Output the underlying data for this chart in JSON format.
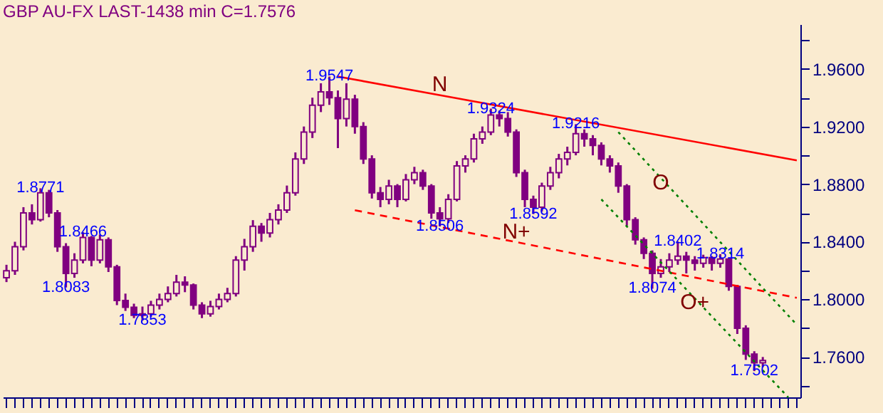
{
  "chart_data": {
    "type": "candlestick",
    "title": "GBP AU-FX LAST-1438 min C=1.7576",
    "color": "#800080",
    "categories": [
      null,
      null,
      null,
      null,
      null,
      null,
      null,
      null,
      null,
      null,
      null,
      null,
      null,
      null,
      null,
      null,
      null,
      null,
      null,
      null,
      null,
      null,
      null,
      null,
      null,
      null,
      null,
      null,
      null,
      null,
      null,
      null,
      null,
      null,
      null,
      null,
      null,
      null,
      null,
      null,
      null,
      null,
      null,
      null,
      null,
      null,
      null,
      null,
      null,
      null,
      null,
      null,
      null,
      null,
      null,
      null,
      null,
      null,
      null,
      null,
      null,
      null,
      null,
      null,
      null,
      null,
      null,
      null,
      null,
      null,
      null,
      null,
      null,
      null,
      null,
      null,
      null,
      null,
      null,
      null,
      null,
      null,
      null,
      null,
      null,
      null,
      null,
      null,
      null,
      null,
      null,
      null,
      null,
      null
    ],
    "ohlc": [
      [
        1.815,
        1.824,
        1.812,
        1.8198
      ],
      [
        1.8198,
        1.84,
        1.817,
        1.8366
      ],
      [
        1.8366,
        1.864,
        1.834,
        1.86
      ],
      [
        1.86,
        1.866,
        1.852,
        1.8553
      ],
      [
        1.8553,
        1.8771,
        1.854,
        1.874
      ],
      [
        1.874,
        1.876,
        1.857,
        1.86
      ],
      [
        1.86,
        1.862,
        1.833,
        1.8366
      ],
      [
        1.8366,
        1.839,
        1.8083,
        1.818
      ],
      [
        1.818,
        1.832,
        1.815,
        1.8273
      ],
      [
        1.8273,
        1.8466,
        1.825,
        1.843
      ],
      [
        1.843,
        1.844,
        1.823,
        1.8273
      ],
      [
        1.8273,
        1.845,
        1.825,
        1.8413
      ],
      [
        1.8413,
        1.843,
        1.819,
        1.8226
      ],
      [
        1.8226,
        1.824,
        1.796,
        1.7992
      ],
      [
        1.7992,
        1.804,
        1.792,
        1.7945
      ],
      [
        1.7945,
        1.797,
        1.787,
        1.789
      ],
      [
        1.789,
        1.795,
        1.7853,
        1.79
      ],
      [
        1.79,
        1.799,
        1.788,
        1.796
      ],
      [
        1.796,
        1.804,
        1.793,
        1.8
      ],
      [
        1.8,
        1.809,
        1.798,
        1.804
      ],
      [
        1.804,
        1.817,
        1.802,
        1.812
      ],
      [
        1.812,
        1.816,
        1.805,
        1.81
      ],
      [
        1.81,
        1.811,
        1.793,
        1.796
      ],
      [
        1.796,
        1.798,
        1.787,
        1.79
      ],
      [
        1.79,
        1.799,
        1.788,
        1.795
      ],
      [
        1.795,
        1.804,
        1.793,
        1.8
      ],
      [
        1.8,
        1.808,
        1.798,
        1.804
      ],
      [
        1.804,
        1.83,
        1.802,
        1.8273
      ],
      [
        1.8273,
        1.842,
        1.82,
        1.8366
      ],
      [
        1.8366,
        1.855,
        1.833,
        1.8507
      ],
      [
        1.8507,
        1.853,
        1.84,
        1.846
      ],
      [
        1.846,
        1.86,
        1.843,
        1.8553
      ],
      [
        1.8553,
        1.866,
        1.852,
        1.862
      ],
      [
        1.862,
        1.879,
        1.86,
        1.874
      ],
      [
        1.874,
        1.902,
        1.872,
        1.8974
      ],
      [
        1.8974,
        1.92,
        1.894,
        1.9161
      ],
      [
        1.9161,
        1.94,
        1.912,
        1.9348
      ],
      [
        1.9348,
        1.95,
        1.93,
        1.944
      ],
      [
        1.944,
        1.9547,
        1.935,
        1.94
      ],
      [
        1.94,
        1.945,
        1.905,
        1.9255
      ],
      [
        1.9255,
        1.95,
        1.92,
        1.939
      ],
      [
        1.939,
        1.942,
        1.915,
        1.92
      ],
      [
        1.92,
        1.923,
        1.894,
        1.8974
      ],
      [
        1.8974,
        1.9,
        1.87,
        1.874
      ],
      [
        1.874,
        1.878,
        1.864,
        1.8694
      ],
      [
        1.8694,
        1.883,
        1.866,
        1.8787
      ],
      [
        1.8787,
        1.88,
        1.864,
        1.8694
      ],
      [
        1.8694,
        1.887,
        1.868,
        1.883
      ],
      [
        1.883,
        1.892,
        1.88,
        1.888
      ],
      [
        1.888,
        1.89,
        1.876,
        1.8787
      ],
      [
        1.8787,
        1.88,
        1.856,
        1.86
      ],
      [
        1.86,
        1.864,
        1.8506,
        1.856
      ],
      [
        1.856,
        1.873,
        1.853,
        1.8694
      ],
      [
        1.8694,
        1.896,
        1.868,
        1.8927
      ],
      [
        1.8927,
        1.9,
        1.888,
        1.8974
      ],
      [
        1.8974,
        1.915,
        1.895,
        1.9114
      ],
      [
        1.9114,
        1.92,
        1.908,
        1.9161
      ],
      [
        1.9161,
        1.9324,
        1.914,
        1.928
      ],
      [
        1.928,
        1.931,
        1.92,
        1.9255
      ],
      [
        1.9255,
        1.93,
        1.913,
        1.9161
      ],
      [
        1.9161,
        1.918,
        1.885,
        1.888
      ],
      [
        1.888,
        1.89,
        1.864,
        1.8694
      ],
      [
        1.8694,
        1.872,
        1.8592,
        1.864
      ],
      [
        1.864,
        1.881,
        1.861,
        1.8787
      ],
      [
        1.8787,
        1.892,
        1.876,
        1.888
      ],
      [
        1.888,
        1.901,
        1.884,
        1.8974
      ],
      [
        1.8974,
        1.906,
        1.893,
        1.902
      ],
      [
        1.902,
        1.9216,
        1.9,
        1.915
      ],
      [
        1.915,
        1.918,
        1.906,
        1.9114
      ],
      [
        1.9114,
        1.914,
        1.9,
        1.9068
      ],
      [
        1.9068,
        1.909,
        1.893,
        1.8974
      ],
      [
        1.8974,
        1.9,
        1.888,
        1.8927
      ],
      [
        1.8927,
        1.895,
        1.874,
        1.8787
      ],
      [
        1.8787,
        1.88,
        1.851,
        1.8553
      ],
      [
        1.8553,
        1.857,
        1.838,
        1.8413
      ],
      [
        1.8413,
        1.843,
        1.828,
        1.832
      ],
      [
        1.832,
        1.834,
        1.8074,
        1.818
      ],
      [
        1.818,
        1.828,
        1.815,
        1.8226
      ],
      [
        1.8226,
        1.832,
        1.819,
        1.8273
      ],
      [
        1.8273,
        1.8402,
        1.824,
        1.83
      ],
      [
        1.83,
        1.833,
        1.818,
        1.8273
      ],
      [
        1.8273,
        1.83,
        1.82,
        1.825
      ],
      [
        1.825,
        1.831,
        1.822,
        1.829
      ],
      [
        1.829,
        1.83,
        1.82,
        1.825
      ],
      [
        1.825,
        1.8314,
        1.822,
        1.828
      ],
      [
        1.828,
        1.829,
        1.806,
        1.809
      ],
      [
        1.809,
        1.81,
        1.776,
        1.78
      ],
      [
        1.78,
        1.782,
        1.758,
        1.762
      ],
      [
        1.762,
        1.764,
        1.7502,
        1.756
      ],
      [
        1.756,
        1.76,
        1.753,
        1.7576
      ],
      null,
      null,
      null,
      null
    ],
    "series": [
      {
        "name": "N",
        "type": "line",
        "color": "#ff0000",
        "line_style": "solid",
        "values": [
          null,
          null,
          null,
          null,
          null,
          null,
          null,
          null,
          null,
          null,
          null,
          null,
          null,
          null,
          null,
          null,
          null,
          null,
          null,
          null,
          null,
          null,
          null,
          null,
          null,
          null,
          null,
          null,
          null,
          null,
          null,
          null,
          null,
          null,
          null,
          null,
          null,
          null,
          null,
          1.9547,
          null,
          null,
          null,
          null,
          null,
          null,
          null,
          null,
          null,
          null,
          null,
          null,
          null,
          1.9396,
          null,
          null,
          null,
          null,
          null,
          null,
          null,
          null,
          null,
          null,
          null,
          null,
          null,
          null,
          null,
          null,
          null,
          null,
          null,
          null,
          null,
          null,
          null,
          null,
          null,
          null,
          null,
          null,
          null,
          null,
          null,
          null,
          null,
          null,
          null,
          null,
          null,
          null,
          null,
          1.8965
        ]
      },
      {
        "name": "N+",
        "type": "line",
        "color": "#ff0000",
        "line_style": "dashed",
        "values": [
          null,
          null,
          null,
          null,
          null,
          null,
          null,
          null,
          null,
          null,
          null,
          null,
          null,
          null,
          null,
          null,
          null,
          null,
          null,
          null,
          null,
          null,
          null,
          null,
          null,
          null,
          null,
          null,
          null,
          null,
          null,
          null,
          null,
          null,
          null,
          null,
          null,
          null,
          null,
          null,
          null,
          1.8619,
          null,
          null,
          null,
          null,
          null,
          null,
          null,
          null,
          null,
          null,
          null,
          null,
          null,
          null,
          null,
          null,
          null,
          null,
          null,
          null,
          1.8374,
          null,
          null,
          null,
          null,
          null,
          null,
          null,
          null,
          null,
          null,
          null,
          null,
          null,
          null,
          null,
          null,
          null,
          null,
          null,
          null,
          null,
          null,
          null,
          null,
          null,
          null,
          null,
          null,
          null,
          null,
          1.8011
        ]
      },
      {
        "name": "O",
        "type": "line",
        "color": "#008000",
        "line_style": "dotted",
        "values": [
          null,
          null,
          null,
          null,
          null,
          null,
          null,
          null,
          null,
          null,
          null,
          null,
          null,
          null,
          null,
          null,
          null,
          null,
          null,
          null,
          null,
          null,
          null,
          null,
          null,
          null,
          null,
          null,
          null,
          null,
          null,
          null,
          null,
          null,
          null,
          null,
          null,
          null,
          null,
          null,
          null,
          null,
          null,
          null,
          null,
          null,
          null,
          null,
          null,
          null,
          null,
          null,
          null,
          null,
          null,
          null,
          null,
          null,
          null,
          null,
          null,
          null,
          null,
          null,
          null,
          null,
          null,
          null,
          null,
          null,
          null,
          null,
          1.9161,
          null,
          null,
          null,
          null,
          null,
          null,
          1.8716,
          null,
          null,
          null,
          null,
          null,
          null,
          null,
          null,
          null,
          null,
          null,
          null,
          null,
          1.7824
        ]
      },
      {
        "name": "O+",
        "type": "line",
        "color": "#008000",
        "line_style": "dotted",
        "values": [
          null,
          null,
          null,
          null,
          null,
          null,
          null,
          null,
          null,
          null,
          null,
          null,
          null,
          null,
          null,
          null,
          null,
          null,
          null,
          null,
          null,
          null,
          null,
          null,
          null,
          null,
          null,
          null,
          null,
          null,
          null,
          null,
          null,
          null,
          null,
          null,
          null,
          null,
          null,
          null,
          null,
          null,
          null,
          null,
          null,
          null,
          null,
          null,
          null,
          null,
          null,
          null,
          null,
          null,
          null,
          null,
          null,
          null,
          null,
          null,
          null,
          null,
          null,
          null,
          null,
          null,
          null,
          null,
          null,
          null,
          1.8694,
          null,
          null,
          null,
          null,
          null,
          null,
          null,
          null,
          null,
          null,
          null,
          null,
          1.7882,
          null,
          null,
          null,
          null,
          null,
          null,
          null,
          null,
          1.732,
          null
        ]
      }
    ],
    "annotations": [
      {
        "text": "1.8771",
        "y": 1.8771
      },
      {
        "text": "1.8083",
        "y": 1.8083
      },
      {
        "text": "1.8466",
        "y": 1.8466
      },
      {
        "text": "1.7853",
        "y": 1.7853
      },
      {
        "text": "1.9547",
        "y": 1.9547
      },
      {
        "text": "1.8506",
        "y": 1.8506
      },
      {
        "text": "1.9324",
        "y": 1.9324
      },
      {
        "text": "1.8592",
        "y": 1.8592
      },
      {
        "text": "1.9216",
        "y": 1.9216
      },
      {
        "text": "1.8074",
        "y": 1.8074
      },
      {
        "text": "1.8402",
        "y": 1.8402
      },
      {
        "text": "1.8314",
        "y": 1.8314
      },
      {
        "text": "1.7502",
        "y": 1.7502
      }
    ],
    "ylim": [
      1.732,
      1.991
    ],
    "yticks": [
      {
        "value": 1.74,
        "label": null
      },
      {
        "value": 1.76,
        "label": "1.7600"
      },
      {
        "value": 1.78,
        "label": null
      },
      {
        "value": 1.8,
        "label": "1.8000"
      },
      {
        "value": 1.82,
        "label": null
      },
      {
        "value": 1.84,
        "label": "1.8400"
      },
      {
        "value": 1.86,
        "label": null
      },
      {
        "value": 1.88,
        "label": "1.8800"
      },
      {
        "value": 1.9,
        "label": null
      },
      {
        "value": 1.92,
        "label": "1.9200"
      },
      {
        "value": 1.94,
        "label": null
      },
      {
        "value": 1.96,
        "label": "1.9600"
      },
      {
        "value": 1.98,
        "label": null
      }
    ],
    "tick_labels": "y",
    "grid": false
  }
}
